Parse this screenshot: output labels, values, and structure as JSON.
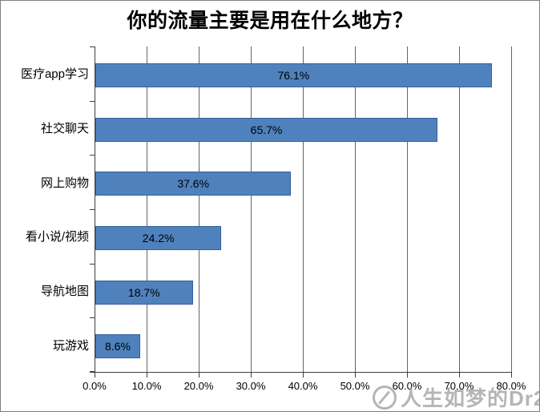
{
  "watermark": {
    "icon": "circle-slash-logo",
    "text": "人生如梦的Dr2"
  },
  "chart_data": {
    "type": "bar",
    "orientation": "horizontal",
    "title": "你的流量主要是用在什么地方？",
    "categories": [
      "医疗app学习",
      "社交聊天",
      "网上购物",
      "看小说/视频",
      "导航地图",
      "玩游戏"
    ],
    "values": [
      76.1,
      65.7,
      37.6,
      24.2,
      18.7,
      8.6
    ],
    "value_labels": [
      "76.1%",
      "65.7%",
      "37.6%",
      "24.2%",
      "18.7%",
      "8.6%"
    ],
    "xlabel": "",
    "ylabel": "",
    "xlim": [
      0,
      80
    ],
    "x_ticks": [
      "0.0%",
      "10.0%",
      "20.0%",
      "30.0%",
      "40.0%",
      "50.0%",
      "60.0%",
      "70.0%",
      "80.0%"
    ],
    "grid": true,
    "legend": "none",
    "bar_color": "#4f81bd",
    "bar_border_color": "#36609b",
    "gridline_color": "#666666",
    "axis_color": "#3f3f3f"
  }
}
